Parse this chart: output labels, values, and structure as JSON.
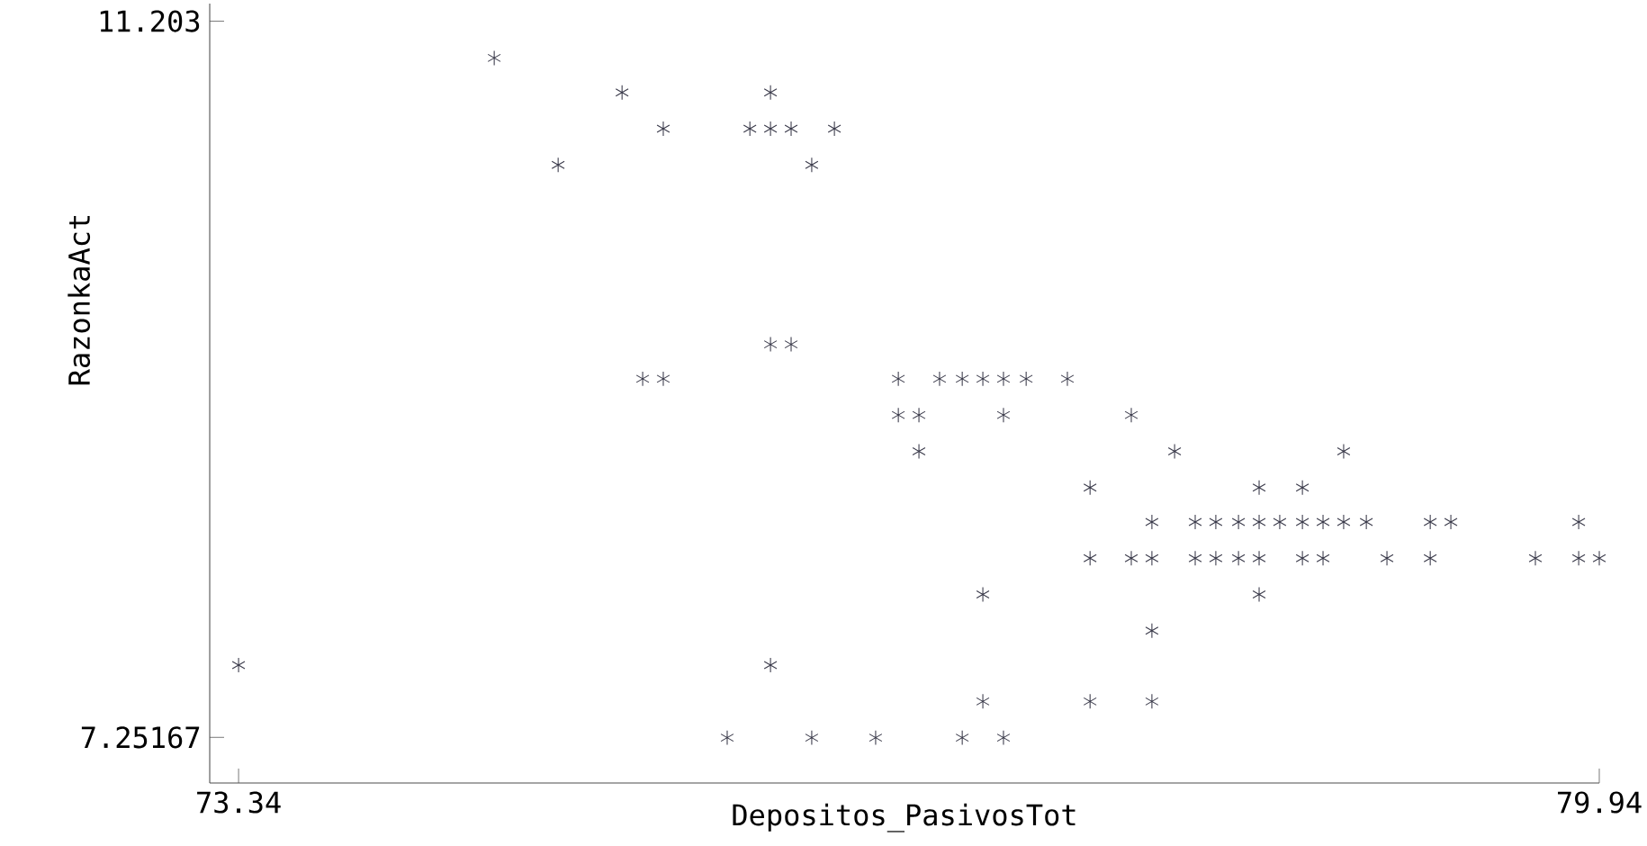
{
  "chart_data": {
    "type": "scatter",
    "xlabel": "Depositos_PasivosTot",
    "ylabel": "RazonkaAct",
    "xlim": [
      73.2,
      79.94
    ],
    "ylim": [
      7.0,
      11.3
    ],
    "xticks": [
      73.34,
      79.94
    ],
    "yticks": [
      7.25167,
      11.203
    ],
    "marker": "cross",
    "grid": false,
    "series": [
      {
        "color": "#3a3a4a",
        "x": [
          74.58,
          75.2,
          75.92,
          75.4,
          75.82,
          75.92,
          76.02,
          76.23,
          74.89,
          76.12,
          75.92,
          76.02,
          75.3,
          75.4,
          76.54,
          76.74,
          76.85,
          76.95,
          77.05,
          77.16,
          77.36,
          76.54,
          76.64,
          77.05,
          77.67,
          76.64,
          77.88,
          78.7,
          77.47,
          78.29,
          78.5,
          77.77,
          77.98,
          78.08,
          78.19,
          78.29,
          78.39,
          78.5,
          78.6,
          78.7,
          78.81,
          79.12,
          79.22,
          79.84,
          77.47,
          77.67,
          77.77,
          77.98,
          78.08,
          78.19,
          78.29,
          78.5,
          78.6,
          78.91,
          79.12,
          79.63,
          79.84,
          79.94,
          76.95,
          78.29,
          77.77,
          73.34,
          75.92,
          76.95,
          77.47,
          77.77,
          75.71,
          76.12,
          76.43,
          76.85,
          77.05
        ],
        "values": [
          11.0,
          10.81,
          10.81,
          10.61,
          10.61,
          10.61,
          10.61,
          10.61,
          10.41,
          10.41,
          9.42,
          9.42,
          9.23,
          9.23,
          9.23,
          9.23,
          9.23,
          9.23,
          9.23,
          9.23,
          9.23,
          9.03,
          9.03,
          9.03,
          9.03,
          8.83,
          8.83,
          8.83,
          8.63,
          8.63,
          8.63,
          8.44,
          8.44,
          8.44,
          8.44,
          8.44,
          8.44,
          8.44,
          8.44,
          8.44,
          8.44,
          8.44,
          8.44,
          8.44,
          8.24,
          8.24,
          8.24,
          8.24,
          8.24,
          8.24,
          8.24,
          8.24,
          8.24,
          8.24,
          8.24,
          8.24,
          8.24,
          8.24,
          8.04,
          8.04,
          7.84,
          7.65,
          7.65,
          7.45,
          7.45,
          7.45,
          7.25,
          7.25,
          7.25,
          7.25,
          7.25
        ]
      }
    ]
  }
}
